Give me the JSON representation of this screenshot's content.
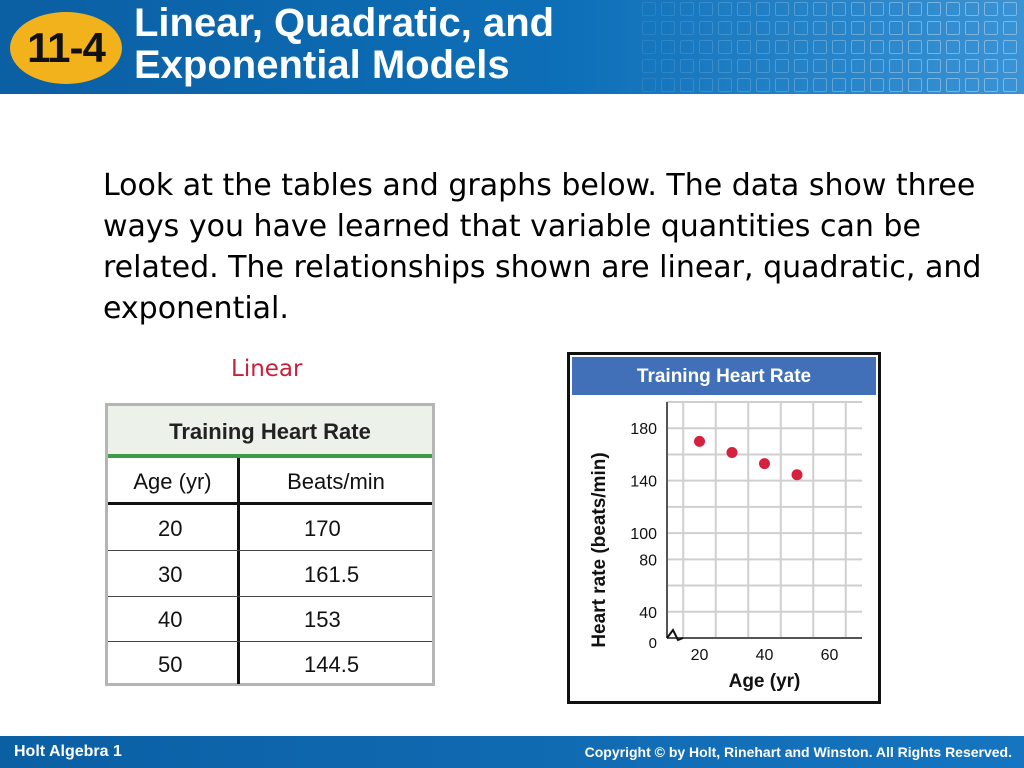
{
  "header": {
    "badge": "11-4",
    "title_line1": "Linear, Quadratic, and",
    "title_line2": "Exponential Models"
  },
  "intro": "Look at the tables and graphs below. The data show three ways you have learned that variable quantities can be related. The relationships shown are linear, quadratic, and exponential.",
  "section_label": "Linear",
  "table": {
    "title": "Training Heart Rate",
    "headers": [
      "Age (yr)",
      "Beats/min"
    ],
    "rows": [
      [
        "20",
        "170"
      ],
      [
        "30",
        "161.5"
      ],
      [
        "40",
        "153"
      ],
      [
        "50",
        "144.5"
      ]
    ]
  },
  "colors": {
    "header_blue": "#0d6fb8",
    "badge_gold": "#f2b21b",
    "linear_label": "#c8203b",
    "table_title_rule": "#3d9c45",
    "chart_title_bg": "#4170b8",
    "point": "#d4213d"
  },
  "chart_data": {
    "type": "scatter",
    "title": "Training Heart Rate",
    "xlabel": "Age (yr)",
    "ylabel": "Heart rate (beats/min)",
    "x": [
      20,
      30,
      40,
      50
    ],
    "y": [
      170,
      161.5,
      153,
      144.5
    ],
    "xlim": [
      10,
      70
    ],
    "ylim": [
      20,
      200
    ],
    "x_ticks": [
      "20",
      "40",
      "60"
    ],
    "y_ticks": [
      "40",
      "80",
      "100",
      "140",
      "180"
    ],
    "origin_label": "0",
    "axis_break": true,
    "grid": true
  },
  "footer": {
    "left": "Holt Algebra 1",
    "right": "Copyright © by Holt, Rinehart and Winston. All Rights Reserved."
  }
}
